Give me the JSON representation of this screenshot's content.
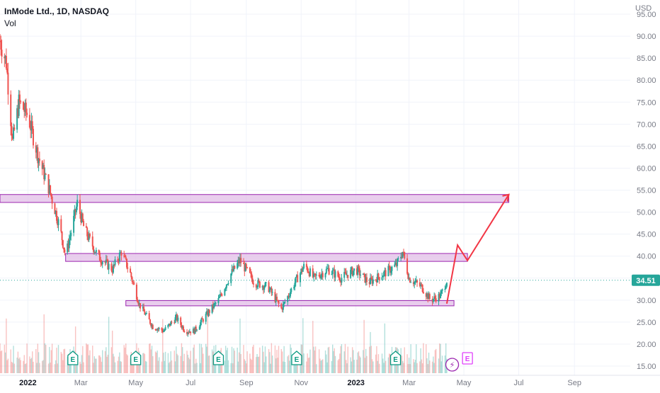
{
  "header": {
    "title": "InMode Ltd., 1D, NASDAQ",
    "volume_label": "Vol",
    "currency": "USD"
  },
  "colors": {
    "up": "#26a69a",
    "down": "#ef5350",
    "zone_fill": "#e1bee7",
    "zone_stroke": "#9c27b0",
    "arrow": "#f23645",
    "price_badge": "#26a69a",
    "axis_text": "#787b86",
    "earnings": "#089981",
    "split": "#9c27b0"
  },
  "chart_data": {
    "type": "candlestick",
    "title": "InMode Ltd., 1D, NASDAQ",
    "y_axis_unit": "USD",
    "ylim": [
      14,
      95
    ],
    "y_ticks": [
      "15.00",
      "20.00",
      "25.00",
      "30.00",
      "35.00",
      "40.00",
      "45.00",
      "50.00",
      "55.00",
      "60.00",
      "65.00",
      "70.00",
      "75.00",
      "80.00",
      "85.00",
      "90.00",
      "95.00"
    ],
    "x_ticks": [
      "2022",
      "Mar",
      "May",
      "Jul",
      "Sep",
      "Nov",
      "2023",
      "Mar",
      "May",
      "Jul",
      "Sep"
    ],
    "x_tick_dates": [
      "2022-01-01",
      "2022-03-01",
      "2022-05-01",
      "2022-07-01",
      "2022-09-01",
      "2022-11-01",
      "2023-01-01",
      "2023-03-01",
      "2023-05-01",
      "2023-07-01",
      "2023-09-01"
    ],
    "last_price": "34.51",
    "price_series_approx": [
      {
        "date": "2021-12-01",
        "price": 89
      },
      {
        "date": "2021-12-08",
        "price": 84
      },
      {
        "date": "2021-12-15",
        "price": 66
      },
      {
        "date": "2021-12-22",
        "price": 75
      },
      {
        "date": "2022-01-01",
        "price": 72
      },
      {
        "date": "2022-01-12",
        "price": 63
      },
      {
        "date": "2022-01-25",
        "price": 55
      },
      {
        "date": "2022-02-05",
        "price": 47
      },
      {
        "date": "2022-02-12",
        "price": 40
      },
      {
        "date": "2022-02-25",
        "price": 52
      },
      {
        "date": "2022-03-05",
        "price": 46
      },
      {
        "date": "2022-03-20",
        "price": 40
      },
      {
        "date": "2022-04-05",
        "price": 37
      },
      {
        "date": "2022-04-15",
        "price": 41
      },
      {
        "date": "2022-04-25",
        "price": 36
      },
      {
        "date": "2022-05-05",
        "price": 29
      },
      {
        "date": "2022-05-20",
        "price": 24
      },
      {
        "date": "2022-06-01",
        "price": 23
      },
      {
        "date": "2022-06-15",
        "price": 26
      },
      {
        "date": "2022-06-25",
        "price": 23
      },
      {
        "date": "2022-07-05",
        "price": 23
      },
      {
        "date": "2022-07-20",
        "price": 27
      },
      {
        "date": "2022-08-01",
        "price": 30
      },
      {
        "date": "2022-08-15",
        "price": 36
      },
      {
        "date": "2022-08-25",
        "price": 39
      },
      {
        "date": "2022-09-10",
        "price": 34
      },
      {
        "date": "2022-09-25",
        "price": 33
      },
      {
        "date": "2022-10-10",
        "price": 28
      },
      {
        "date": "2022-10-25",
        "price": 34
      },
      {
        "date": "2022-11-05",
        "price": 38
      },
      {
        "date": "2022-11-15",
        "price": 35
      },
      {
        "date": "2022-12-01",
        "price": 37
      },
      {
        "date": "2022-12-15",
        "price": 35
      },
      {
        "date": "2023-01-01",
        "price": 37
      },
      {
        "date": "2023-01-15",
        "price": 34
      },
      {
        "date": "2023-02-01",
        "price": 36
      },
      {
        "date": "2023-02-15",
        "price": 38
      },
      {
        "date": "2023-02-22",
        "price": 41
      },
      {
        "date": "2023-03-01",
        "price": 35
      },
      {
        "date": "2023-03-15",
        "price": 33
      },
      {
        "date": "2023-03-25",
        "price": 30
      },
      {
        "date": "2023-04-05",
        "price": 31
      },
      {
        "date": "2023-04-12",
        "price": 34.51
      }
    ],
    "zones": [
      {
        "name": "resistance-zone-upper",
        "x_start": "2021-12-01",
        "x_end": "2023-06-20",
        "y_low": 52.2,
        "y_high": 54.0
      },
      {
        "name": "resistance-zone-middle",
        "x_start": "2022-02-12",
        "x_end": "2023-05-05",
        "y_low": 38.8,
        "y_high": 40.6
      },
      {
        "name": "support-zone-lower",
        "x_start": "2022-04-20",
        "x_end": "2023-04-20",
        "y_low": 28.7,
        "y_high": 29.9
      }
    ],
    "projection_path": [
      {
        "date": "2023-04-12",
        "price": 29.2
      },
      {
        "date": "2023-04-24",
        "price": 42.5
      },
      {
        "date": "2023-05-05",
        "price": 39.0
      },
      {
        "date": "2023-06-20",
        "price": 54.0
      }
    ],
    "earnings_markers": [
      "2022-02-20",
      "2022-05-01",
      "2022-08-01",
      "2022-10-27",
      "2023-02-14"
    ],
    "earnings_label": "E",
    "upcoming_earnings": "2023-05-05",
    "split_marker": "2023-04-18",
    "split_symbol": "⚡",
    "volume": {
      "series_name": "Vol",
      "approx_relative_max": 1.0
    }
  }
}
